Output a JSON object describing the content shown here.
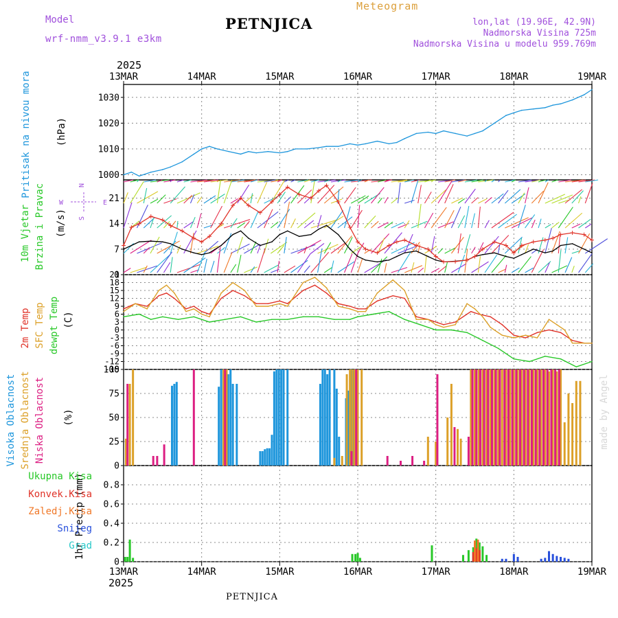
{
  "header": {
    "model_label": "Model",
    "model_name": "wrf-nmm_v3.9.1  e3km",
    "meteogram": "Meteogram",
    "station": "PETNJICA",
    "lonlat": "lon,lat (19.96E, 42.9N)",
    "elevation": "Nadmorska Visina 725m",
    "model_elevation": "Nadmorska Visina u modelu 959.769m",
    "footer_station": "PETNJICA",
    "credit": "made by Angel"
  },
  "time_axis": {
    "year": "2025",
    "ticks": [
      "13MAR",
      "14MAR",
      "15MAR",
      "16MAR",
      "17MAR",
      "18MAR",
      "19MAR"
    ]
  },
  "chart_data": [
    {
      "type": "line",
      "panel": "pressure",
      "ylabel": "Pritisak na nivou mora",
      "units": "(hPa)",
      "ylim": [
        998,
        1035
      ],
      "yticks": [
        "1000",
        "1010",
        "1020",
        "1030"
      ],
      "series": [
        {
          "name": "MSL pressure",
          "color": "#1e96dc",
          "x": [
            0,
            0.1,
            0.2,
            0.35,
            0.5,
            0.6,
            0.75,
            0.9,
            1.0,
            1.1,
            1.2,
            1.35,
            1.5,
            1.6,
            1.7,
            1.85,
            2.0,
            2.1,
            2.2,
            2.35,
            2.5,
            2.6,
            2.75,
            2.9,
            3.0,
            3.1,
            3.25,
            3.4,
            3.5,
            3.6,
            3.75,
            3.9,
            4.0,
            4.1,
            4.25,
            4.4,
            4.5,
            4.6,
            4.75,
            4.9,
            5.0,
            5.1,
            5.25,
            5.4,
            5.5,
            5.6,
            5.75,
            5.9,
            6.0
          ],
          "y": [
            1000,
            1001,
            999.5,
            1001,
            1002,
            1003,
            1005,
            1008,
            1010,
            1011,
            1010,
            1009,
            1008,
            1009,
            1008.5,
            1009,
            1008.5,
            1009,
            1010,
            1010,
            1010.5,
            1011,
            1011,
            1012,
            1011.5,
            1012,
            1013,
            1012,
            1012.5,
            1014,
            1016,
            1016.5,
            1016,
            1017,
            1016,
            1015,
            1016,
            1017,
            1020,
            1023,
            1024,
            1025,
            1025.5,
            1026,
            1027,
            1027.5,
            1029,
            1031,
            1033
          ]
        }
      ]
    },
    {
      "type": "line",
      "panel": "wind",
      "ylabel": "10m Vjetar",
      "ylabel2": "Brzina i Pravac",
      "units": "(m/s)",
      "ylim": [
        0,
        26
      ],
      "yticks": [
        "0",
        "7",
        "14",
        "21"
      ],
      "compass": {
        "north": "N",
        "east": "E",
        "west": "W",
        "south": "S"
      },
      "series": [
        {
          "name": "10m wind speed",
          "color": "#000000",
          "x": [
            0,
            0.1,
            0.2,
            0.35,
            0.5,
            0.6,
            0.75,
            0.9,
            1.0,
            1.1,
            1.25,
            1.4,
            1.5,
            1.6,
            1.75,
            1.9,
            2.0,
            2.1,
            2.25,
            2.4,
            2.5,
            2.6,
            2.75,
            2.9,
            3.0,
            3.1,
            3.25,
            3.4,
            3.5,
            3.6,
            3.75,
            3.9,
            4.0,
            4.1,
            4.25,
            4.4,
            4.5,
            4.6,
            4.75,
            4.9,
            5.0,
            5.1,
            5.25,
            5.4,
            5.5,
            5.6,
            5.75,
            5.9,
            6.0
          ],
          "y": [
            7,
            8,
            9,
            9.2,
            9,
            8.5,
            7,
            6,
            5.5,
            6,
            8,
            11,
            12,
            10,
            8,
            9,
            11,
            12,
            10.5,
            11,
            12.5,
            13.5,
            11,
            7,
            5,
            4,
            3.5,
            4,
            5,
            6,
            6.5,
            5,
            4,
            3.5,
            3.7,
            4,
            5,
            5.5,
            6,
            5,
            4.5,
            5.5,
            7,
            6,
            6.5,
            8,
            8.5,
            7,
            6
          ]
        },
        {
          "name": "10m wind gust",
          "color": "#e03228",
          "x": [
            0,
            0.1,
            0.2,
            0.35,
            0.5,
            0.6,
            0.75,
            0.9,
            1.0,
            1.1,
            1.25,
            1.4,
            1.5,
            1.6,
            1.75,
            1.9,
            2.0,
            2.1,
            2.25,
            2.4,
            2.5,
            2.6,
            2.75,
            2.9,
            3.0,
            3.1,
            3.25,
            3.4,
            3.5,
            3.6,
            3.75,
            3.9,
            4.0,
            4.1,
            4.25,
            4.4,
            4.5,
            4.6,
            4.75,
            4.9,
            5.0,
            5.1,
            5.25,
            5.4,
            5.5,
            5.6,
            5.75,
            5.9,
            6.0
          ],
          "y": [
            8,
            13,
            14,
            16,
            15,
            13.5,
            12,
            10,
            9,
            10.5,
            14,
            19,
            21,
            19,
            17,
            20,
            22,
            24,
            22,
            21,
            23,
            24.5,
            20,
            13,
            9,
            7,
            6,
            8,
            9,
            9.5,
            8,
            7,
            5,
            3.5,
            3.6,
            4,
            5,
            7,
            9,
            8,
            6,
            8,
            9,
            9.5,
            10,
            11,
            11.5,
            11,
            9.5
          ]
        }
      ]
    },
    {
      "type": "line",
      "panel": "temperature",
      "ylabel": "2m Temp",
      "ylabel2": "SFC Temp",
      "ylabel3": "dewpt Temp",
      "units": "(C)",
      "ylim": [
        -15,
        21
      ],
      "yticks": [
        "-15",
        "-12",
        "-9",
        "-6",
        "-3",
        "0",
        "3",
        "6",
        "9",
        "12",
        "15",
        "18",
        "21"
      ],
      "series": [
        {
          "name": "2m Temp",
          "color": "#e03228",
          "x": [
            0,
            0.15,
            0.3,
            0.45,
            0.55,
            0.65,
            0.8,
            0.9,
            1.0,
            1.1,
            1.25,
            1.4,
            1.55,
            1.7,
            1.85,
            2.0,
            2.1,
            2.3,
            2.45,
            2.6,
            2.75,
            2.9,
            3.0,
            3.1,
            3.25,
            3.45,
            3.6,
            3.75,
            3.9,
            4.0,
            4.1,
            4.25,
            4.45,
            4.55,
            4.7,
            4.85,
            5.0,
            5.15,
            5.3,
            5.45,
            5.6,
            5.75,
            5.9,
            6.0
          ],
          "y": [
            8,
            10,
            9,
            13,
            14,
            12,
            8,
            9,
            7,
            6,
            12,
            15,
            13,
            10,
            10,
            11,
            10,
            15,
            17,
            14,
            10,
            9,
            8,
            8,
            11,
            13,
            12,
            5,
            4,
            3,
            2,
            3,
            7,
            6,
            5,
            2,
            -2,
            -3,
            -1,
            0,
            -1,
            -4,
            -5,
            -5
          ]
        },
        {
          "name": "SFC Temp",
          "color": "#dca028",
          "x": [
            0,
            0.15,
            0.3,
            0.45,
            0.55,
            0.65,
            0.8,
            0.9,
            1.0,
            1.1,
            1.25,
            1.4,
            1.55,
            1.7,
            1.85,
            2.0,
            2.1,
            2.3,
            2.45,
            2.6,
            2.75,
            2.9,
            3.0,
            3.1,
            3.25,
            3.45,
            3.6,
            3.75,
            3.9,
            4.0,
            4.1,
            4.25,
            4.4,
            4.5,
            4.6,
            4.7,
            4.85,
            5.0,
            5.15,
            5.3,
            5.45,
            5.55,
            5.65,
            5.75,
            5.9,
            6.0
          ],
          "y": [
            7,
            10,
            8,
            15,
            17,
            14,
            7,
            8,
            6,
            5,
            14,
            18,
            15,
            9,
            9,
            10,
            9,
            18,
            20,
            16,
            9,
            8,
            7,
            7,
            14,
            19,
            15,
            4,
            4,
            2,
            1,
            2,
            10,
            8,
            5,
            1,
            -2,
            -3,
            -2,
            -3,
            4,
            2,
            0,
            -5,
            -5,
            -5
          ]
        },
        {
          "name": "dewpt Temp",
          "color": "#28c828",
          "x": [
            0,
            0.2,
            0.35,
            0.5,
            0.7,
            0.9,
            1.0,
            1.1,
            1.3,
            1.5,
            1.7,
            1.9,
            2.1,
            2.3,
            2.5,
            2.7,
            2.9,
            3.0,
            3.2,
            3.4,
            3.6,
            3.8,
            4.0,
            4.2,
            4.4,
            4.6,
            4.8,
            5.0,
            5.2,
            5.4,
            5.6,
            5.8,
            6.0
          ],
          "y": [
            5,
            6,
            4,
            5,
            4,
            5,
            4,
            3,
            4,
            5,
            3,
            4,
            4,
            5,
            5,
            4,
            4,
            5,
            6,
            7,
            4,
            2,
            0,
            0,
            -1,
            -4,
            -7,
            -11,
            -12,
            -10,
            -11,
            -14,
            -12
          ]
        }
      ]
    },
    {
      "type": "bar",
      "panel": "cloud",
      "ylabel": "Visoka Oblacnost",
      "ylabel2": "Srednja Oblacnost",
      "ylabel3": "Niska Oblacnost",
      "units": "(%)",
      "ylim": [
        0,
        100
      ],
      "yticks": [
        "0",
        "25",
        "50",
        "75",
        "100"
      ],
      "series": [
        {
          "name": "Visoka Oblacnost",
          "color": "#1e96dc",
          "x": [
            0.62,
            0.65,
            0.68,
            1.22,
            1.25,
            1.28,
            1.31,
            1.34,
            1.37,
            1.4,
            1.45,
            1.75,
            1.78,
            1.81,
            1.84,
            1.87,
            1.9,
            1.93,
            1.96,
            1.99,
            2.02,
            2.05,
            2.1,
            2.52,
            2.55,
            2.58,
            2.61,
            2.64,
            2.7,
            2.73,
            2.76,
            2.85,
            2.88,
            2.91,
            2.94,
            2.97,
            3.0
          ],
          "values": [
            83,
            85,
            87,
            82,
            100,
            100,
            95,
            95,
            100,
            85,
            85,
            15,
            15,
            17,
            18,
            18,
            32,
            98,
            100,
            100,
            100,
            100,
            100,
            85,
            100,
            100,
            95,
            100,
            100,
            80,
            30,
            70,
            78,
            100,
            100,
            100,
            100
          ]
        },
        {
          "name": "Srednja Oblacnost",
          "color": "#dca028",
          "x": [
            0.03,
            0.08,
            0.12,
            1.28,
            1.32,
            2.7,
            2.8,
            2.86,
            2.9,
            2.93,
            2.96,
            3.0,
            3.05,
            3.9,
            4.0,
            4.15,
            4.2,
            4.28,
            4.32,
            4.45,
            4.5,
            4.55,
            4.6,
            4.65,
            4.7,
            4.75,
            4.8,
            4.85,
            4.9,
            4.95,
            5.0,
            5.05,
            5.1,
            5.15,
            5.2,
            5.25,
            5.3,
            5.35,
            5.4,
            5.45,
            5.5,
            5.55,
            5.6,
            5.65,
            5.7,
            5.75,
            5.8,
            5.85
          ],
          "values": [
            28,
            85,
            100,
            100,
            100,
            8,
            10,
            95,
            100,
            100,
            100,
            100,
            100,
            30,
            25,
            50,
            85,
            38,
            28,
            100,
            100,
            100,
            100,
            100,
            100,
            100,
            100,
            100,
            100,
            100,
            100,
            100,
            100,
            100,
            100,
            100,
            100,
            100,
            100,
            98,
            100,
            98,
            100,
            45,
            75,
            65,
            88,
            88
          ]
        },
        {
          "name": "Niska Oblacnost",
          "color": "#dc1e82",
          "x": [
            0.05,
            0.38,
            0.43,
            0.52,
            0.9,
            1.3,
            2.92,
            2.98,
            3.38,
            3.55,
            3.7,
            3.85,
            4.02,
            4.24,
            4.42,
            4.47,
            4.52,
            4.57,
            4.62,
            4.67,
            4.72,
            4.77,
            4.82,
            4.88,
            4.93,
            4.98,
            5.03,
            5.08,
            5.13,
            5.18,
            5.23,
            5.28,
            5.33,
            5.38,
            5.43,
            5.48,
            5.53,
            5.58
          ],
          "values": [
            85,
            10,
            10,
            22,
            100,
            100,
            15,
            100,
            10,
            5,
            10,
            5,
            95,
            40,
            30,
            100,
            100,
            100,
            100,
            100,
            100,
            100,
            100,
            100,
            100,
            100,
            100,
            100,
            100,
            100,
            100,
            100,
            100,
            100,
            100,
            100,
            100,
            100
          ]
        }
      ]
    },
    {
      "type": "bar",
      "panel": "precipitation",
      "ylabel": "1hr Precip",
      "units": "(mm)",
      "ylim": [
        0,
        1.0
      ],
      "yticks": [
        "0",
        "0.2",
        "0.4",
        "0.6",
        "0.8"
      ],
      "legend": [
        "Ukupna Kisa",
        "Konvek.Kisa",
        "Zaledj.Kisa",
        "Snijeg",
        "Grad"
      ],
      "series": [
        {
          "name": "Ukupna Kisa",
          "color": "#28c828",
          "x": [
            0.02,
            0.05,
            0.08,
            0.12,
            2.93,
            2.97,
            3.0,
            3.03,
            3.95,
            4.35,
            4.42,
            4.48,
            4.52,
            4.56,
            4.6,
            4.65
          ],
          "values": [
            0.05,
            0.05,
            0.23,
            0.04,
            0.08,
            0.08,
            0.09,
            0.04,
            0.17,
            0.07,
            0.12,
            0.15,
            0.24,
            0.2,
            0.16,
            0.07
          ]
        },
        {
          "name": "Konvek.Kisa",
          "color": "#e03228",
          "x": [
            4.48,
            4.52,
            4.56
          ],
          "values": [
            0.1,
            0.14,
            0.12
          ]
        },
        {
          "name": "Zaledj.Kisa",
          "color": "#f07828",
          "x": [
            4.5,
            4.54
          ],
          "values": [
            0.22,
            0.23
          ]
        },
        {
          "name": "Snijeg",
          "color": "#2850dc",
          "x": [
            4.85,
            4.9,
            5.0,
            5.05,
            5.35,
            5.4,
            5.45,
            5.5,
            5.55,
            5.6,
            5.65,
            5.7
          ],
          "values": [
            0.03,
            0.03,
            0.08,
            0.05,
            0.03,
            0.04,
            0.11,
            0.08,
            0.06,
            0.05,
            0.04,
            0.03
          ]
        },
        {
          "name": "Grad",
          "color": "#28c8c8",
          "x": [],
          "values": []
        }
      ]
    }
  ]
}
